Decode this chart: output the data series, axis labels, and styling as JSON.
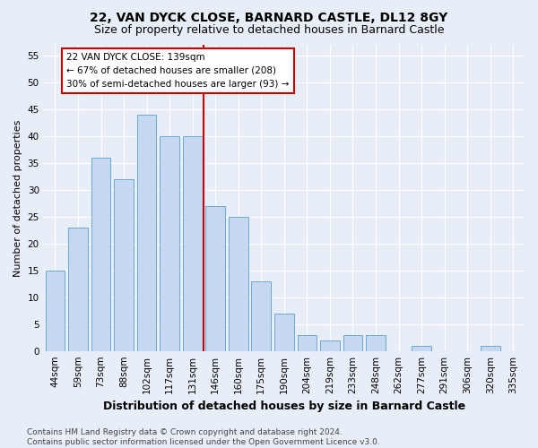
{
  "title": "22, VAN DYCK CLOSE, BARNARD CASTLE, DL12 8GY",
  "subtitle": "Size of property relative to detached houses in Barnard Castle",
  "xlabel": "Distribution of detached houses by size in Barnard Castle",
  "ylabel": "Number of detached properties",
  "categories": [
    "44sqm",
    "59sqm",
    "73sqm",
    "88sqm",
    "102sqm",
    "117sqm",
    "131sqm",
    "146sqm",
    "160sqm",
    "175sqm",
    "190sqm",
    "204sqm",
    "219sqm",
    "233sqm",
    "248sqm",
    "262sqm",
    "277sqm",
    "291sqm",
    "306sqm",
    "320sqm",
    "335sqm"
  ],
  "values": [
    15,
    23,
    36,
    32,
    44,
    40,
    40,
    27,
    25,
    13,
    7,
    3,
    2,
    3,
    3,
    0,
    1,
    0,
    0,
    1,
    0
  ],
  "bar_color": "#c5d8ef",
  "bar_edge_color": "#6aaad4",
  "vline_index": 7,
  "vline_color": "#cc0000",
  "annotation_text": "22 VAN DYCK CLOSE: 139sqm\n← 67% of detached houses are smaller (208)\n30% of semi-detached houses are larger (93) →",
  "annotation_box_facecolor": "#ffffff",
  "annotation_box_edgecolor": "#cc0000",
  "ylim": [
    0,
    57
  ],
  "yticks": [
    0,
    5,
    10,
    15,
    20,
    25,
    30,
    35,
    40,
    45,
    50,
    55
  ],
  "footer_text": "Contains HM Land Registry data © Crown copyright and database right 2024.\nContains public sector information licensed under the Open Government Licence v3.0.",
  "background_color": "#e8eef8",
  "grid_color": "#ffffff",
  "title_fontsize": 10,
  "subtitle_fontsize": 9,
  "xlabel_fontsize": 9,
  "ylabel_fontsize": 8,
  "tick_fontsize": 7.5,
  "annotation_fontsize": 7.5,
  "footer_fontsize": 6.5
}
